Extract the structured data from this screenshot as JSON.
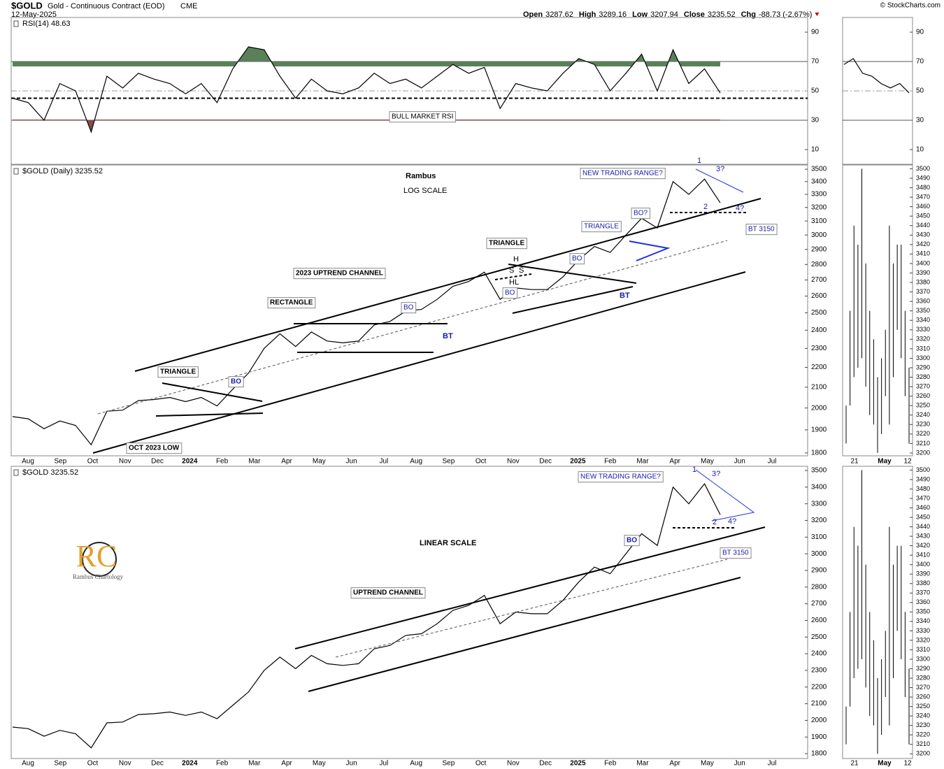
{
  "header": {
    "symbol": "$GOLD",
    "name": "Gold - Continuous Contract (EOD)",
    "exchange": "CME",
    "date": "12-May-2025",
    "quote": [
      {
        "label": "Open",
        "value": "3287.62"
      },
      {
        "label": "High",
        "value": "3289.16"
      },
      {
        "label": "Low",
        "value": "3207.94"
      },
      {
        "label": "Close",
        "value": "3235.52"
      },
      {
        "label": "Chg",
        "value": "-88.73 (-2.67%)"
      }
    ],
    "brand": "© StockCharts.com"
  },
  "logo": {
    "mark": "RC",
    "text": "Rambus Chartology"
  },
  "chart_data": [
    {
      "type": "line",
      "title": "RSI(14) 48.63",
      "ylim": [
        0,
        100
      ],
      "yticks": [
        10,
        30,
        50,
        70,
        90
      ],
      "reference_lines": [
        70,
        50,
        30
      ],
      "support_line": 45,
      "overbought_color": "#5a8059",
      "oversold_color": "#8a4a4a",
      "series": [
        {
          "name": "RSI(14)",
          "color": "#000000",
          "values": [
            45,
            42,
            30,
            55,
            50,
            22,
            60,
            52,
            62,
            58,
            55,
            48,
            55,
            42,
            65,
            80,
            78,
            60,
            45,
            58,
            50,
            48,
            52,
            62,
            55,
            58,
            52,
            60,
            68,
            62,
            66,
            38,
            55,
            52,
            50,
            62,
            72,
            68,
            50,
            62,
            75,
            50,
            78,
            55,
            65,
            48.63
          ]
        }
      ],
      "annotations": [
        "BULL MARKET RSI"
      ]
    },
    {
      "type": "line",
      "title": "$GOLD (Daily) 3235.52",
      "scale": "log",
      "ylim": [
        1788,
        3535
      ],
      "yticks": [
        1800,
        1900,
        2000,
        2100,
        2200,
        2300,
        2400,
        2500,
        2600,
        2700,
        2800,
        2900,
        3000,
        3100,
        3200,
        3300,
        3400,
        3500
      ],
      "xticks": [
        "Aug",
        "Sep",
        "Oct",
        "Nov",
        "Dec",
        "2024",
        "Feb",
        "Mar",
        "Apr",
        "May",
        "Jun",
        "Jul",
        "Aug",
        "Sep",
        "Oct",
        "Nov",
        "Dec",
        "2025",
        "Feb",
        "Mar",
        "Apr",
        "May",
        "Jun",
        "Jul"
      ],
      "series": [
        {
          "name": "$GOLD",
          "color": "#000000",
          "values": [
            1960,
            1950,
            1905,
            1940,
            1920,
            1835,
            1985,
            1990,
            2035,
            2040,
            2050,
            2030,
            2050,
            2010,
            2090,
            2170,
            2300,
            2380,
            2310,
            2390,
            2340,
            2330,
            2340,
            2430,
            2450,
            2510,
            2520,
            2580,
            2660,
            2690,
            2750,
            2580,
            2650,
            2640,
            2640,
            2720,
            2830,
            2920,
            2880,
            3000,
            3120,
            3050,
            3400,
            3300,
            3420,
            3235
          ]
        }
      ],
      "annotations": [
        "Rambus",
        "LOG SCALE",
        "NEW TRADING RANGE?",
        "1",
        "2",
        "3?",
        "4?",
        "BO?",
        "BT 3150",
        "TRIANGLE",
        "TRIANGLE",
        "H",
        "S",
        "S",
        "HL",
        "BO",
        "BO",
        "BT",
        "2023 UPTREND CHANNEL",
        "RECTANGLE",
        "BO",
        "BT",
        "TRIANGLE",
        "BO",
        "OCT 2023 LOW"
      ]
    },
    {
      "type": "line",
      "title": "$GOLD 3235.52",
      "ylim": [
        1771,
        3525
      ],
      "yticks": [
        1800,
        1900,
        2000,
        2100,
        2200,
        2300,
        2400,
        2500,
        2600,
        2700,
        2800,
        2900,
        3000,
        3100,
        3200,
        3300,
        3400,
        3500
      ],
      "xticks": [
        "Aug",
        "Sep",
        "Oct",
        "Nov",
        "Dec",
        "2024",
        "Feb",
        "Mar",
        "Apr",
        "May",
        "Jun",
        "Jul",
        "Aug",
        "Sep",
        "Oct",
        "Nov",
        "Dec",
        "2025",
        "Feb",
        "Mar",
        "Apr",
        "May",
        "Jun",
        "Jul"
      ],
      "series": [
        {
          "name": "$GOLD",
          "color": "#000000",
          "values": [
            1960,
            1950,
            1905,
            1940,
            1920,
            1835,
            1985,
            1990,
            2035,
            2040,
            2050,
            2030,
            2050,
            2010,
            2090,
            2170,
            2300,
            2380,
            2310,
            2390,
            2340,
            2330,
            2340,
            2430,
            2450,
            2510,
            2520,
            2580,
            2660,
            2690,
            2750,
            2580,
            2650,
            2640,
            2640,
            2720,
            2830,
            2920,
            2880,
            3000,
            3120,
            3050,
            3400,
            3300,
            3420,
            3235
          ]
        }
      ],
      "annotations": [
        "NEW TRADING RANGE?",
        "1",
        "2",
        "3?",
        "4?",
        "BO",
        "BT 3150",
        "LINEAR SCALE",
        "UPTREND CHANNEL"
      ]
    },
    {
      "type": "line",
      "ylim": [
        0,
        100
      ],
      "yticks": [
        10,
        30,
        50,
        70,
        90
      ],
      "reference_lines": [
        70,
        50,
        30
      ],
      "series": [
        {
          "name": "RSI(14)",
          "color": "#000000",
          "values": [
            68,
            72,
            62,
            60,
            55,
            52,
            55,
            48.63
          ]
        }
      ]
    },
    {
      "type": "range",
      "ylim": [
        3197,
        3504
      ],
      "yticks": [
        3200,
        3210,
        3220,
        3230,
        3240,
        3250,
        3260,
        3270,
        3280,
        3290,
        3300,
        3310,
        3320,
        3330,
        3340,
        3350,
        3360,
        3370,
        3380,
        3390,
        3400,
        3410,
        3420,
        3430,
        3440,
        3450,
        3460,
        3470,
        3480,
        3490,
        3500
      ],
      "xticks": [
        "21",
        "May",
        "12"
      ],
      "low": [
        3210,
        3250,
        3280,
        3290,
        3300,
        3270,
        3240,
        3230,
        3200,
        3220,
        3260,
        3230,
        3280,
        3330,
        3300,
        3260,
        3210
      ],
      "high": [
        3250,
        3350,
        3440,
        3420,
        3500,
        3400,
        3350,
        3320,
        3280,
        3300,
        3330,
        3440,
        3400,
        3420,
        3420,
        3350,
        3290
      ]
    },
    {
      "type": "range",
      "ylim": [
        3195,
        3504
      ],
      "yticks": [
        3200,
        3210,
        3220,
        3230,
        3240,
        3250,
        3260,
        3270,
        3280,
        3290,
        3300,
        3310,
        3320,
        3330,
        3340,
        3350,
        3360,
        3370,
        3380,
        3390,
        3400,
        3410,
        3420,
        3430,
        3440,
        3450,
        3460,
        3470,
        3480,
        3490,
        3500
      ],
      "xticks": [
        "21",
        "May",
        "12"
      ],
      "low": [
        3210,
        3250,
        3280,
        3290,
        3300,
        3270,
        3240,
        3230,
        3200,
        3220,
        3260,
        3230,
        3280,
        3330,
        3300,
        3260,
        3210
      ],
      "high": [
        3250,
        3350,
        3440,
        3420,
        3500,
        3400,
        3350,
        3320,
        3280,
        3300,
        3330,
        3440,
        3400,
        3420,
        3420,
        3350,
        3290
      ]
    }
  ]
}
